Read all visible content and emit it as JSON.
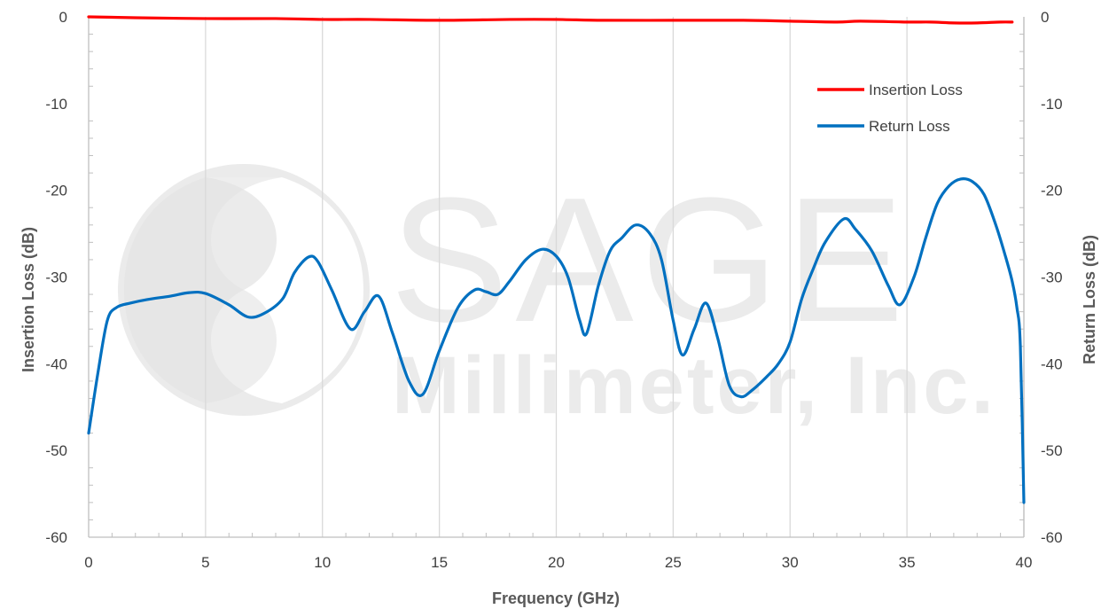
{
  "watermark": {
    "line1": "SAGE",
    "line2": "Millimeter, Inc."
  },
  "chart_data": {
    "type": "line",
    "xlabel": "Frequency (GHz)",
    "ylabel_left": "Insertion Loss (dB)",
    "ylabel_right": "Return Loss (dB)",
    "xlim": [
      0,
      40
    ],
    "ylim": [
      -60,
      0
    ],
    "x_ticks": [
      0,
      5,
      10,
      15,
      20,
      25,
      30,
      35,
      40
    ],
    "x_tick_labels": [
      "0",
      "5",
      "10",
      "15",
      "20",
      "25",
      "30",
      "35",
      "40"
    ],
    "y_ticks": [
      0,
      -10,
      -20,
      -30,
      -40,
      -50,
      -60
    ],
    "y_tick_labels_left": [
      "0",
      "-10",
      "-20",
      "-30",
      "-40",
      "-50",
      "-60"
    ],
    "y_tick_labels_right": [
      "0",
      "-10",
      "-20",
      "-30",
      "-40",
      "-50",
      "-60"
    ],
    "grid": "vertical",
    "legend_position": "top-right",
    "series": [
      {
        "name": "Insertion Loss",
        "color": "#ff0000",
        "x": [
          0,
          2,
          5,
          8,
          10,
          12,
          15,
          18,
          20,
          22,
          25,
          28,
          30,
          32,
          33,
          35,
          36,
          37,
          38,
          39,
          39.5
        ],
        "y": [
          0,
          -0.1,
          -0.2,
          -0.2,
          -0.3,
          -0.3,
          -0.4,
          -0.3,
          -0.3,
          -0.4,
          -0.4,
          -0.4,
          -0.5,
          -0.6,
          -0.5,
          -0.6,
          -0.6,
          -0.7,
          -0.7,
          -0.6,
          -0.6
        ]
      },
      {
        "name": "Return Loss",
        "color": "#0070c0",
        "x": [
          0,
          0.4,
          0.8,
          1.2,
          1.8,
          2.5,
          3.5,
          4.3,
          5.0,
          6.0,
          6.8,
          7.5,
          8.3,
          8.8,
          9.4,
          9.8,
          10.4,
          11.2,
          11.8,
          12.4,
          13.0,
          13.7,
          14.3,
          15.0,
          15.8,
          16.5,
          17.0,
          17.5,
          18.0,
          18.7,
          19.4,
          20.0,
          20.5,
          21.0,
          21.3,
          21.8,
          22.3,
          22.8,
          23.4,
          24.0,
          24.5,
          25.0,
          25.4,
          25.9,
          26.4,
          26.9,
          27.4,
          27.9,
          28.4,
          29.0,
          29.5,
          30.0,
          30.5,
          31.0,
          31.5,
          32.3,
          32.8,
          33.5,
          34.2,
          34.7,
          35.3,
          35.8,
          36.3,
          36.8,
          37.3,
          37.8,
          38.3,
          38.8,
          39.2,
          39.5,
          39.7,
          39.85,
          40.0
        ],
        "y": [
          -48,
          -41,
          -35,
          -33.5,
          -33,
          -32.6,
          -32.2,
          -31.8,
          -31.9,
          -33.2,
          -34.6,
          -34.2,
          -32.5,
          -29.5,
          -27.7,
          -28.2,
          -31.5,
          -36,
          -34,
          -32.2,
          -36.5,
          -42,
          -43.5,
          -38.5,
          -33.5,
          -31.5,
          -31.7,
          -32,
          -30.5,
          -28,
          -26.8,
          -27.6,
          -30,
          -35,
          -36.5,
          -31,
          -27,
          -25.5,
          -24,
          -25,
          -28,
          -35,
          -39,
          -36,
          -33,
          -37,
          -42.5,
          -43.8,
          -43,
          -41.5,
          -40,
          -37.5,
          -32.5,
          -29,
          -26,
          -23.3,
          -24.5,
          -27,
          -31,
          -33.2,
          -30,
          -25.5,
          -21.5,
          -19.5,
          -18.7,
          -19,
          -20.5,
          -24,
          -27.5,
          -30.5,
          -33.5,
          -38,
          -56
        ]
      }
    ]
  }
}
